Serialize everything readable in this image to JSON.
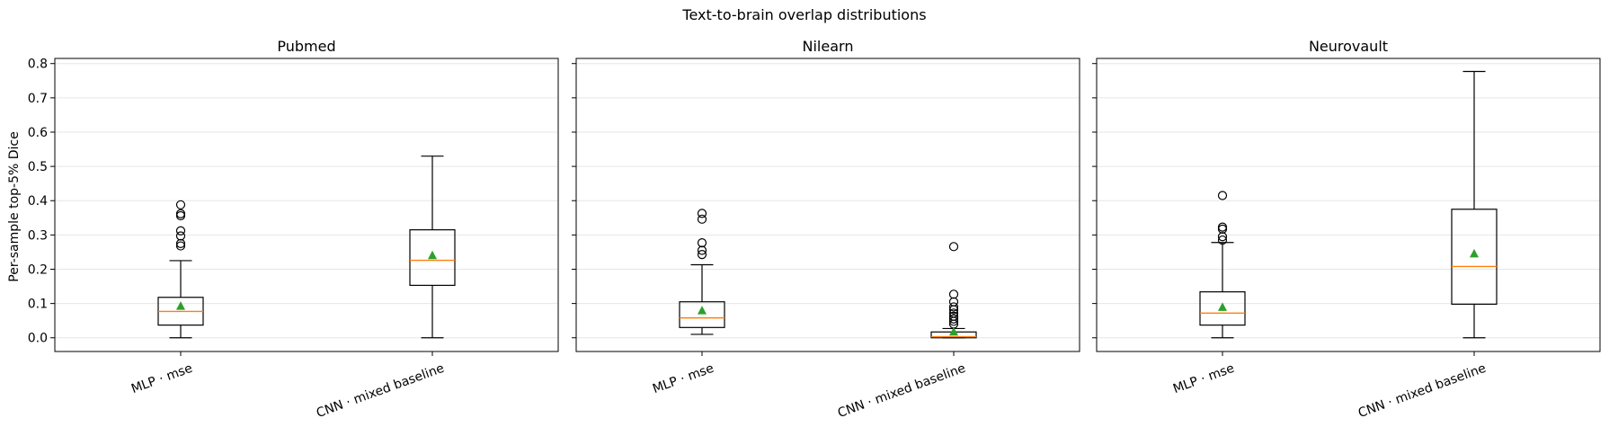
{
  "chart_data": {
    "type": "box",
    "title": "Text-to-brain overlap distributions",
    "ylabel": "Per-sample top-5% Dice",
    "ylim": [
      -0.04,
      0.815
    ],
    "yticks": [
      "0.0",
      "0.1",
      "0.2",
      "0.3",
      "0.4",
      "0.5",
      "0.6",
      "0.7",
      "0.8"
    ],
    "grid": "horizontal",
    "categories": [
      "MLP · mse",
      "CNN · mixed baseline"
    ],
    "colors": {
      "median": "#ff7f0e",
      "mean": "#2ca02c",
      "box": "#000000",
      "grid": "#e6e6e6"
    },
    "panels": [
      {
        "title": "Pubmed",
        "boxes": [
          {
            "category": "MLP · mse",
            "whisker_low": 0.0,
            "q1": 0.037,
            "median": 0.077,
            "q3": 0.118,
            "whisker_high": 0.225,
            "mean": 0.092,
            "outliers": [
              0.268,
              0.275,
              0.297,
              0.312,
              0.356,
              0.362,
              0.388
            ]
          },
          {
            "category": "CNN · mixed baseline",
            "whisker_low": 0.0,
            "q1": 0.153,
            "median": 0.226,
            "q3": 0.315,
            "whisker_high": 0.53,
            "mean": 0.24,
            "outliers": []
          }
        ]
      },
      {
        "title": "Nilearn",
        "boxes": [
          {
            "category": "MLP · mse",
            "whisker_low": 0.01,
            "q1": 0.03,
            "median": 0.058,
            "q3": 0.105,
            "whisker_high": 0.213,
            "mean": 0.079,
            "outliers": [
              0.243,
              0.255,
              0.277,
              0.346,
              0.363
            ]
          },
          {
            "category": "CNN · mixed baseline",
            "whisker_low": 0.0,
            "q1": 0.0,
            "median": 0.003,
            "q3": 0.017,
            "whisker_high": 0.027,
            "mean": 0.017,
            "outliers": [
              0.04,
              0.048,
              0.055,
              0.063,
              0.072,
              0.082,
              0.09,
              0.105,
              0.127,
              0.266
            ]
          }
        ]
      },
      {
        "title": "Neurovault",
        "boxes": [
          {
            "category": "MLP · mse",
            "whisker_low": 0.0,
            "q1": 0.037,
            "median": 0.072,
            "q3": 0.134,
            "whisker_high": 0.278,
            "mean": 0.089,
            "outliers": [
              0.285,
              0.295,
              0.317,
              0.323,
              0.415
            ]
          },
          {
            "category": "CNN · mixed baseline",
            "whisker_low": 0.0,
            "q1": 0.098,
            "median": 0.208,
            "q3": 0.375,
            "whisker_high": 0.777,
            "mean": 0.245,
            "outliers": []
          }
        ]
      }
    ]
  }
}
